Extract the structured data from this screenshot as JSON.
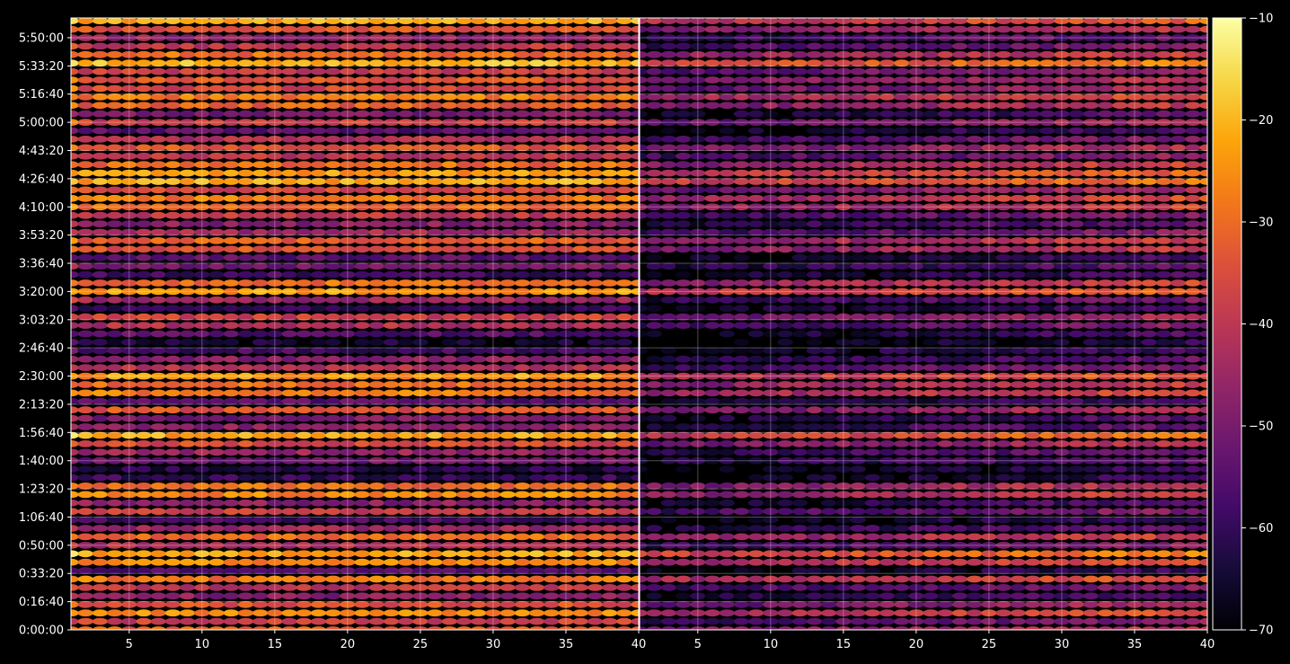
{
  "chart_data": {
    "type": "heatmap",
    "title": "",
    "xlabel": "",
    "ylabel": "",
    "grid": true,
    "colormap": "inferno",
    "colorbar": {
      "min": -70,
      "max": -10,
      "ticks": [
        -10,
        -20,
        -30,
        -40,
        -50,
        -60,
        -70
      ],
      "tick_labels": [
        "−10",
        "−20",
        "−30",
        "−40",
        "−50",
        "−60",
        "−70"
      ]
    },
    "panels": [
      {
        "xlim": [
          1,
          40
        ],
        "x_ticks": [
          5,
          10,
          15,
          20,
          25,
          30,
          35,
          40
        ],
        "x_tick_labels": [
          "5",
          "10",
          "15",
          "20",
          "25",
          "30",
          "35",
          "40"
        ],
        "ylim_seconds": [
          0,
          21700
        ]
      },
      {
        "xlim": [
          1,
          40
        ],
        "x_ticks": [
          5,
          10,
          15,
          20,
          25,
          30,
          35,
          40
        ],
        "x_tick_labels": [
          "5",
          "10",
          "15",
          "20",
          "25",
          "30",
          "35",
          "40"
        ],
        "ylim_seconds": [
          0,
          21700
        ]
      }
    ],
    "y_ticks_seconds": [
      0,
      1000,
      2000,
      3000,
      4000,
      5000,
      6000,
      7000,
      8000,
      9000,
      10000,
      11000,
      12000,
      13000,
      14000,
      15000,
      16000,
      17000,
      18000,
      19000,
      20000,
      21000
    ],
    "y_tick_labels": [
      "0:00:00",
      "0:16:40",
      "0:33:20",
      "0:50:00",
      "1:06:40",
      "1:23:20",
      "1:40:00",
      "1:56:40",
      "2:13:20",
      "2:30:00",
      "2:46:40",
      "3:03:20",
      "3:20:00",
      "3:36:40",
      "3:53:20",
      "4:10:00",
      "4:26:40",
      "4:43:20",
      "5:00:00",
      "5:16:40",
      "5:33:20",
      "5:50:00"
    ],
    "band_profile": {
      "time_seconds": [
        0,
        300,
        600,
        900,
        1200,
        1500,
        1800,
        2100,
        2400,
        2700,
        3000,
        3300,
        3600,
        3900,
        4200,
        4500,
        4800,
        5100,
        5400,
        5700,
        6000,
        6300,
        6600,
        6900,
        7200,
        7500,
        7800,
        8100,
        8400,
        8700,
        9000,
        9300,
        9600,
        9900,
        10200,
        10500,
        10800,
        11100,
        11400,
        11700,
        12000,
        12300,
        12600,
        12900,
        13200,
        13500,
        13800,
        14100,
        14400,
        14700,
        15000,
        15300,
        15600,
        15900,
        16200,
        16500,
        16800,
        17100,
        17400,
        17700,
        18000,
        18300,
        18600,
        18900,
        19200,
        19500,
        19800,
        20100,
        20400,
        20700,
        21000,
        21300,
        21600
      ],
      "level_left": [
        -32,
        -38,
        -26,
        -35,
        -48,
        -40,
        -28,
        -55,
        -26,
        -22,
        -42,
        -30,
        -45,
        -58,
        -38,
        -48,
        -26,
        -30,
        -60,
        -62,
        -52,
        -46,
        -36,
        -22,
        -48,
        -50,
        -34,
        -55,
        -28,
        -30,
        -24,
        -42,
        -48,
        -58,
        -65,
        -55,
        -42,
        -38,
        -60,
        -45,
        -24,
        -30,
        -58,
        -50,
        -54,
        -34,
        -32,
        -44,
        -48,
        -40,
        -30,
        -28,
        -36,
        -22,
        -24,
        -30,
        -40,
        -34,
        -42,
        -55,
        -38,
        -50,
        -32,
        -28,
        -36,
        -34,
        -38,
        -20,
        -30,
        -40,
        -46,
        -34,
        -22
      ],
      "level_right": [
        -46,
        -55,
        -40,
        -50,
        -62,
        -55,
        -40,
        -66,
        -40,
        -34,
        -55,
        -44,
        -60,
        -66,
        -55,
        -62,
        -44,
        -46,
        -66,
        -66,
        -60,
        -58,
        -48,
        -36,
        -60,
        -62,
        -48,
        -64,
        -42,
        -44,
        -38,
        -55,
        -60,
        -64,
        -68,
        -64,
        -55,
        -50,
        -64,
        -58,
        -38,
        -44,
        -64,
        -60,
        -64,
        -46,
        -44,
        -55,
        -60,
        -55,
        -44,
        -42,
        -50,
        -36,
        -38,
        -44,
        -54,
        -48,
        -56,
        -64,
        -50,
        -62,
        -46,
        -42,
        -50,
        -48,
        -52,
        -34,
        -44,
        -55,
        -58,
        -46,
        -38
      ],
      "ramp_right": 12,
      "left_panel_column1_offset": 8
    }
  }
}
